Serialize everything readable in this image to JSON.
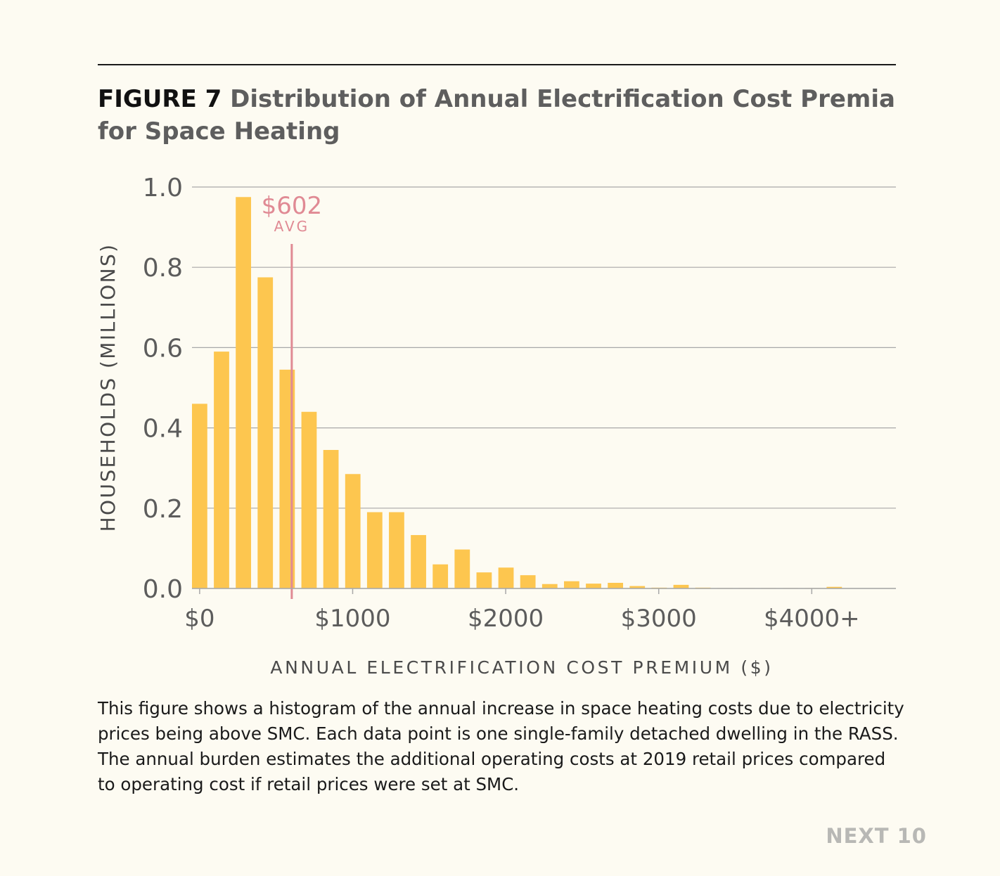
{
  "figure": {
    "label": "FIGURE 7",
    "title": "Distribution of Annual Electrification Cost Premia for Space Heating"
  },
  "caption": "This figure shows a histogram of the annual increase in space heating costs due to electricity prices being above SMC. Each data point is one single-family detached dwelling in the RASS. The annual burden estimates the additional operating costs at 2019 retail prices compared to operating cost if retail prices were set at SMC.",
  "brand": "NEXT 10",
  "colors": {
    "bar": "#fdc64f",
    "avg_line": "#e08a94",
    "grid": "#a8a8a8",
    "axis_text": "#5c5c5c"
  },
  "chart_data": {
    "type": "bar",
    "xlabel": "ANNUAL ELECTRIFICATION COST PREMIUM ($)",
    "ylabel": "HOUSEHOLDS (MILLIONS)",
    "ylim": [
      0,
      1.0
    ],
    "xlim": [
      -50,
      4550
    ],
    "bin_width": 143,
    "yticks": [
      0.0,
      0.2,
      0.4,
      0.6,
      0.8,
      1.0
    ],
    "ytick_labels": [
      "0.0",
      "0.2",
      "0.4",
      "0.6",
      "0.8",
      "1.0"
    ],
    "xticks": [
      0,
      1000,
      2000,
      3000,
      4000
    ],
    "xtick_labels": [
      "$0",
      "$1000",
      "$2000",
      "$3000",
      "$4000+"
    ],
    "grid": true,
    "bins": [
      {
        "x": 0,
        "value": 0.46
      },
      {
        "x": 143,
        "value": 0.59
      },
      {
        "x": 286,
        "value": 0.975
      },
      {
        "x": 429,
        "value": 0.775
      },
      {
        "x": 572,
        "value": 0.545
      },
      {
        "x": 715,
        "value": 0.44
      },
      {
        "x": 858,
        "value": 0.345
      },
      {
        "x": 1001,
        "value": 0.285
      },
      {
        "x": 1144,
        "value": 0.19
      },
      {
        "x": 1287,
        "value": 0.19
      },
      {
        "x": 1430,
        "value": 0.133
      },
      {
        "x": 1573,
        "value": 0.06
      },
      {
        "x": 1716,
        "value": 0.097
      },
      {
        "x": 1859,
        "value": 0.04
      },
      {
        "x": 2002,
        "value": 0.052
      },
      {
        "x": 2145,
        "value": 0.033
      },
      {
        "x": 2288,
        "value": 0.011
      },
      {
        "x": 2431,
        "value": 0.018
      },
      {
        "x": 2574,
        "value": 0.012
      },
      {
        "x": 2717,
        "value": 0.014
      },
      {
        "x": 2860,
        "value": 0.006
      },
      {
        "x": 3003,
        "value": 0.002
      },
      {
        "x": 3146,
        "value": 0.009
      },
      {
        "x": 3289,
        "value": 0.002
      },
      {
        "x": 3432,
        "value": 0.001
      },
      {
        "x": 3575,
        "value": 0.001
      },
      {
        "x": 3718,
        "value": 0.001
      },
      {
        "x": 3861,
        "value": 0.001
      },
      {
        "x": 4004,
        "value": 0.001
      },
      {
        "x": 4147,
        "value": 0.004
      }
    ],
    "average": {
      "value": 602,
      "label": "$602",
      "sublabel": "AVG"
    }
  }
}
